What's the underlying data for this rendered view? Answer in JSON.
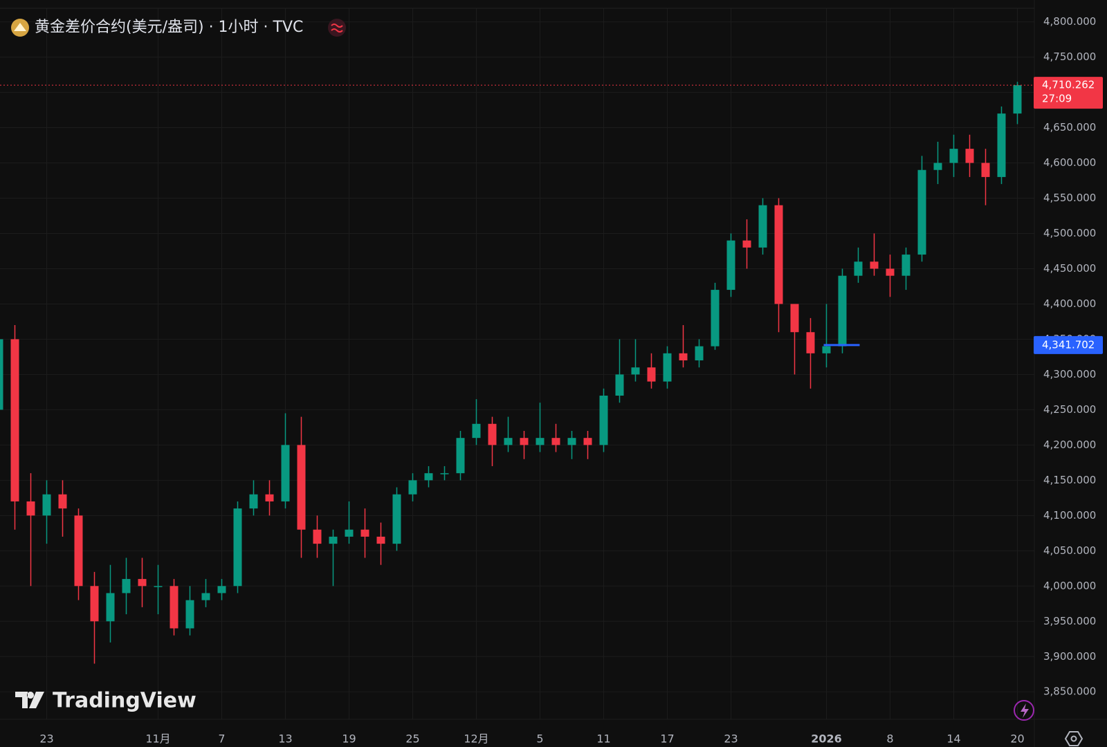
{
  "header": {
    "title": "黄金差价合约(美元/盎司) · 1小时 · TVC"
  },
  "watermark": "TradingView",
  "chart_data": {
    "type": "candlestick",
    "categories": [
      null,
      null,
      null,
      "23",
      null,
      null,
      null,
      null,
      null,
      null,
      "11月",
      null,
      null,
      null,
      "7",
      null,
      null,
      null,
      "13",
      null,
      null,
      null,
      "19",
      null,
      null,
      null,
      "25",
      null,
      null,
      null,
      "12月",
      null,
      null,
      null,
      "5",
      null,
      null,
      null,
      "11",
      null,
      null,
      null,
      "17",
      null,
      null,
      null,
      "23",
      null,
      null,
      null,
      null,
      null,
      "2026",
      null,
      null,
      null,
      "8",
      null,
      null,
      null,
      "14",
      null,
      null,
      null,
      "20"
    ],
    "candles": [
      [
        4250,
        4380,
        4230,
        4350
      ],
      [
        4350,
        4370,
        4080,
        4120
      ],
      [
        4120,
        4160,
        4000,
        4100
      ],
      [
        4100,
        4150,
        4060,
        4130
      ],
      [
        4130,
        4150,
        4070,
        4110
      ],
      [
        4100,
        4110,
        3980,
        4000
      ],
      [
        4000,
        4020,
        3890,
        3950
      ],
      [
        3950,
        4030,
        3920,
        3990
      ],
      [
        3990,
        4040,
        3960,
        4010
      ],
      [
        4010,
        4040,
        3970,
        4000
      ],
      [
        4000,
        4030,
        3960,
        4000
      ],
      [
        4000,
        4010,
        3930,
        3940
      ],
      [
        3940,
        4000,
        3930,
        3980
      ],
      [
        3980,
        4010,
        3970,
        3990
      ],
      [
        3990,
        4010,
        3980,
        4000
      ],
      [
        4000,
        4120,
        3990,
        4110
      ],
      [
        4110,
        4150,
        4100,
        4130
      ],
      [
        4130,
        4150,
        4100,
        4120
      ],
      [
        4120,
        4245,
        4110,
        4200
      ],
      [
        4200,
        4240,
        4040,
        4080
      ],
      [
        4080,
        4100,
        4040,
        4060
      ],
      [
        4060,
        4080,
        4000,
        4070
      ],
      [
        4070,
        4120,
        4060,
        4080
      ],
      [
        4080,
        4110,
        4040,
        4070
      ],
      [
        4070,
        4090,
        4030,
        4060
      ],
      [
        4060,
        4140,
        4050,
        4130
      ],
      [
        4130,
        4160,
        4120,
        4150
      ],
      [
        4150,
        4170,
        4140,
        4160
      ],
      [
        4160,
        4170,
        4150,
        4160
      ],
      [
        4160,
        4220,
        4150,
        4210
      ],
      [
        4210,
        4265,
        4200,
        4230
      ],
      [
        4230,
        4240,
        4170,
        4200
      ],
      [
        4200,
        4240,
        4190,
        4210
      ],
      [
        4210,
        4220,
        4180,
        4200
      ],
      [
        4200,
        4260,
        4190,
        4210
      ],
      [
        4210,
        4230,
        4190,
        4200
      ],
      [
        4200,
        4220,
        4180,
        4210
      ],
      [
        4210,
        4220,
        4180,
        4200
      ],
      [
        4200,
        4280,
        4190,
        4270
      ],
      [
        4270,
        4350,
        4260,
        4300
      ],
      [
        4300,
        4350,
        4290,
        4310
      ],
      [
        4310,
        4330,
        4280,
        4290
      ],
      [
        4290,
        4340,
        4280,
        4330
      ],
      [
        4330,
        4370,
        4310,
        4320
      ],
      [
        4320,
        4350,
        4310,
        4340
      ],
      [
        4340,
        4430,
        4335,
        4420
      ],
      [
        4420,
        4500,
        4410,
        4490
      ],
      [
        4490,
        4520,
        4450,
        4480
      ],
      [
        4480,
        4550,
        4470,
        4540
      ],
      [
        4540,
        4550,
        4360,
        4400
      ],
      [
        4400,
        4400,
        4300,
        4360
      ],
      [
        4360,
        4380,
        4280,
        4330
      ],
      [
        4330,
        4400,
        4310,
        4340
      ],
      [
        4340,
        4450,
        4330,
        4440
      ],
      [
        4440,
        4480,
        4430,
        4460
      ],
      [
        4460,
        4500,
        4440,
        4450
      ],
      [
        4450,
        4470,
        4410,
        4440
      ],
      [
        4440,
        4480,
        4420,
        4470
      ],
      [
        4470,
        4610,
        4460,
        4590
      ],
      [
        4590,
        4630,
        4570,
        4600
      ],
      [
        4600,
        4640,
        4580,
        4620
      ],
      [
        4620,
        4640,
        4580,
        4600
      ],
      [
        4600,
        4620,
        4540,
        4580
      ],
      [
        4580,
        4680,
        4570,
        4670
      ],
      [
        4670,
        4715,
        4655,
        4710.262
      ]
    ],
    "up_color": "#089981",
    "down_color": "#f23645",
    "ylim": [
      3811,
      4831
    ],
    "yticks": [
      {
        "value": 3850,
        "label": "3,850.000"
      },
      {
        "value": 3900,
        "label": "3,900.000"
      },
      {
        "value": 3950,
        "label": "3,950.000"
      },
      {
        "value": 4000,
        "label": "4,000.000"
      },
      {
        "value": 4050,
        "label": "4,050.000"
      },
      {
        "value": 4100,
        "label": "4,100.000"
      },
      {
        "value": 4150,
        "label": "4,150.000"
      },
      {
        "value": 4200,
        "label": "4,200.000"
      },
      {
        "value": 4250,
        "label": "4,250.000"
      },
      {
        "value": 4300,
        "label": "4,300.000"
      },
      {
        "value": 4350,
        "label": "4,350.000"
      },
      {
        "value": 4400,
        "label": "4,400.000"
      },
      {
        "value": 4450,
        "label": "4,450.000"
      },
      {
        "value": 4500,
        "label": "4,500.000"
      },
      {
        "value": 4550,
        "label": "4,550.000"
      },
      {
        "value": 4600,
        "label": "4,600.000"
      },
      {
        "value": 4650,
        "label": "4,650.000"
      },
      {
        "value": 4700,
        "label": "4,700.000"
      },
      {
        "value": 4750,
        "label": "4,750.000"
      },
      {
        "value": 4800,
        "label": "4,800.000"
      }
    ],
    "grid": true,
    "last_price": {
      "value": 4710.262,
      "label": "4,710.262"
    },
    "countdown": "27:09",
    "level": {
      "value": 4341.702,
      "label": "4,341.702"
    },
    "level_color": "#2962ff"
  }
}
